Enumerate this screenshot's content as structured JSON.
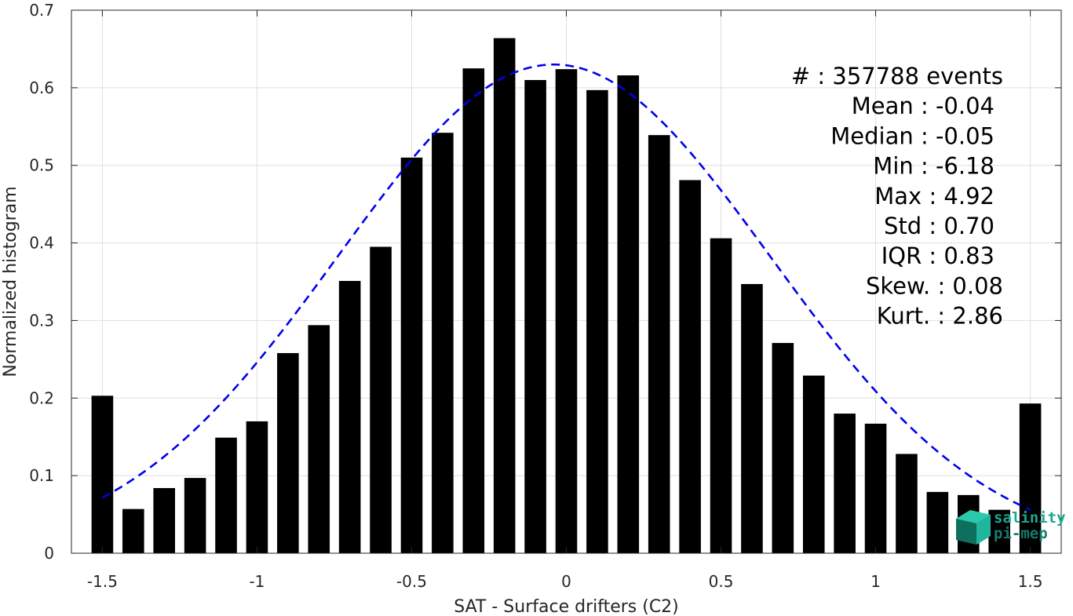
{
  "chart_data": {
    "type": "bar",
    "xlabel": "SAT - Surface drifters (C2)",
    "ylabel": "Normalized histogram",
    "xlim": [
      -1.6,
      1.6
    ],
    "ylim": [
      0,
      0.7
    ],
    "xticks": [
      -1.5,
      -1,
      -0.5,
      0,
      0.5,
      1,
      1.5
    ],
    "xtick_labels": [
      "-1.5",
      "-1",
      "-0.5",
      "0",
      "0.5",
      "1",
      "1.5"
    ],
    "yticks": [
      0,
      0.1,
      0.2,
      0.3,
      0.4,
      0.5,
      0.6,
      0.7
    ],
    "ytick_labels": [
      "0",
      "0.1",
      "0.2",
      "0.3",
      "0.4",
      "0.5",
      "0.6",
      "0.7"
    ],
    "grid": true,
    "bar_color": "#000000",
    "bars": {
      "x": [
        -1.5,
        -1.4,
        -1.3,
        -1.2,
        -1.1,
        -1.0,
        -0.9,
        -0.8,
        -0.7,
        -0.6,
        -0.5,
        -0.4,
        -0.3,
        -0.2,
        -0.1,
        0.0,
        0.1,
        0.2,
        0.3,
        0.4,
        0.5,
        0.6,
        0.7,
        0.8,
        0.9,
        1.0,
        1.1,
        1.2,
        1.3,
        1.4,
        1.5
      ],
      "values": [
        0.203,
        0.057,
        0.084,
        0.097,
        0.149,
        0.17,
        0.258,
        0.294,
        0.351,
        0.395,
        0.51,
        0.542,
        0.625,
        0.664,
        0.61,
        0.624,
        0.597,
        0.616,
        0.539,
        0.481,
        0.406,
        0.347,
        0.271,
        0.229,
        0.18,
        0.167,
        0.128,
        0.079,
        0.075,
        0.056,
        0.193
      ]
    },
    "fit": {
      "style": "dashed",
      "color": "#0000ee",
      "mean": -0.04,
      "std": 0.7,
      "peak": 0.63,
      "x_range": [
        -1.5,
        1.5
      ]
    },
    "stats": [
      "#  : 357788 events",
      "Mean : -0.04",
      "Median : -0.05",
      "Min : -6.18",
      "Max : 4.92",
      "Std : 0.70",
      "IQR : 0.83",
      "Skew. : 0.08",
      "Kurt. : 2.86"
    ],
    "logo": {
      "line1": "salinity",
      "line2": "pi-mep",
      "color": "#1aa88f"
    }
  }
}
